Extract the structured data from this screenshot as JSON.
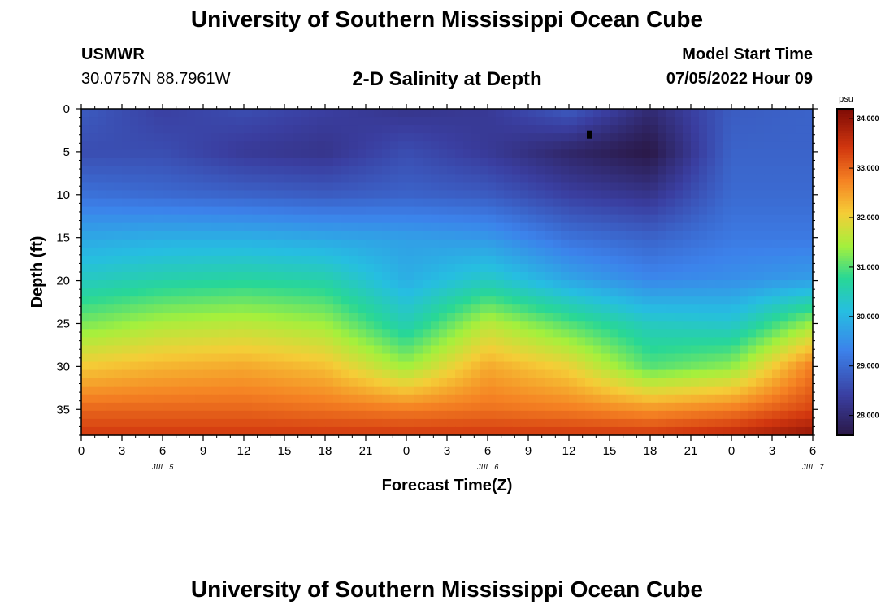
{
  "page": {
    "title_top": "University of Southern Mississippi Ocean Cube",
    "title_bottom": "University of Southern Mississippi Ocean Cube",
    "station": "USMWR",
    "coords": "30.0757N  88.7961W",
    "subtitle": "2-D Salinity at Depth",
    "model_label": "Model Start Time",
    "model_time": "07/05/2022 Hour 09"
  },
  "chart_data": {
    "type": "heatmap",
    "title": "2-D Salinity at Depth",
    "xlabel": "Forecast Time(Z)",
    "ylabel": "Depth (ft)",
    "x_tick_labels": [
      "0",
      "3",
      "6",
      "9",
      "12",
      "15",
      "18",
      "21",
      "0",
      "3",
      "6",
      "9",
      "12",
      "15",
      "18",
      "21",
      "0",
      "3",
      "6"
    ],
    "x_date_labels": [
      {
        "label": "JUL 5",
        "hour": 6
      },
      {
        "label": "JUL 6",
        "hour": 30
      },
      {
        "label": "JUL 7",
        "hour": 54
      }
    ],
    "xlim": [
      0,
      54
    ],
    "y_tick_labels": [
      "0",
      "5",
      "10",
      "15",
      "20",
      "25",
      "30",
      "35"
    ],
    "ylim": [
      0,
      38
    ],
    "colorbar": {
      "unit": "psu",
      "tick_labels": [
        "34.000",
        "33.000",
        "32.000",
        "31.000",
        "30.000",
        "29.000",
        "28.000"
      ],
      "range": [
        27.6,
        34.2
      ]
    },
    "x_hours": [
      0,
      6,
      12,
      18,
      24,
      30,
      36,
      42,
      48,
      54
    ],
    "depths_ft": [
      0,
      5,
      10,
      15,
      20,
      25,
      30,
      35,
      38
    ],
    "values": [
      [
        28.8,
        28.4,
        28.6,
        28.4,
        28.2,
        28.3,
        28.8,
        28.0,
        28.8,
        28.9
      ],
      [
        28.6,
        28.6,
        28.3,
        28.2,
        28.6,
        28.3,
        27.9,
        27.6,
        28.9,
        28.9
      ],
      [
        29.1,
        29.0,
        28.9,
        28.8,
        28.9,
        28.8,
        28.4,
        28.2,
        29.0,
        29.0
      ],
      [
        29.8,
        29.9,
        29.9,
        29.8,
        29.7,
        29.6,
        29.1,
        28.9,
        29.2,
        29.2
      ],
      [
        30.4,
        30.6,
        30.7,
        30.6,
        29.9,
        30.4,
        29.8,
        29.4,
        29.5,
        29.7
      ],
      [
        31.2,
        31.5,
        31.6,
        31.4,
        30.5,
        31.6,
        31.0,
        30.4,
        30.3,
        31.4
      ],
      [
        32.1,
        32.3,
        32.4,
        32.2,
        31.4,
        32.4,
        32.0,
        31.0,
        31.3,
        32.8
      ],
      [
        33.0,
        33.0,
        33.0,
        32.9,
        32.8,
        32.9,
        32.8,
        32.6,
        32.8,
        33.3
      ],
      [
        33.4,
        33.4,
        33.4,
        33.4,
        33.4,
        33.4,
        33.4,
        33.4,
        33.6,
        34.0
      ]
    ],
    "marker": {
      "hour": 37.5,
      "depth_ft": 3
    }
  }
}
